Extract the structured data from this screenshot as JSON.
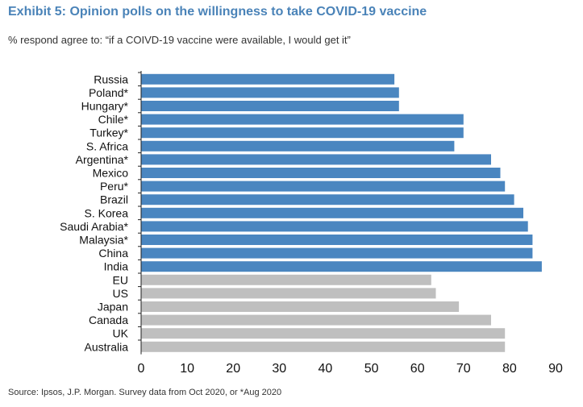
{
  "header": {
    "title": "Exhibit 5: Opinion polls on the willingness to take COVID-19 vaccine",
    "subtitle": "% respond agree to: “if a COIVD-19 vaccine were available, I would get it”"
  },
  "footer": {
    "source": "Source: Ipsos, J.P. Morgan. Survey data from Oct 2020, or *Aug 2020"
  },
  "chart_data": {
    "type": "bar",
    "orientation": "horizontal",
    "title": "Exhibit 5: Opinion polls on the willingness to take COVID-19 vaccine",
    "subtitle": "% respond agree to: “if a COIVD-19 vaccine were available, I would get it”",
    "categories": [
      "Russia",
      "Poland*",
      "Hungary*",
      "Chile*",
      "Turkey*",
      "S. Africa",
      "Argentina*",
      "Mexico",
      "Peru*",
      "Brazil",
      "S. Korea",
      "Saudi Arabia*",
      "Malaysia*",
      "China",
      "India",
      "EU",
      "US",
      "Japan",
      "Canada",
      "UK",
      "Australia"
    ],
    "values": [
      55,
      56,
      56,
      70,
      70,
      68,
      76,
      78,
      79,
      81,
      83,
      84,
      85,
      85,
      87,
      63,
      64,
      69,
      76,
      79,
      79
    ],
    "bar_colors": [
      "#4a86c0",
      "#4a86c0",
      "#4a86c0",
      "#4a86c0",
      "#4a86c0",
      "#4a86c0",
      "#4a86c0",
      "#4a86c0",
      "#4a86c0",
      "#4a86c0",
      "#4a86c0",
      "#4a86c0",
      "#4a86c0",
      "#4a86c0",
      "#4a86c0",
      "#bfbfbf",
      "#bfbfbf",
      "#bfbfbf",
      "#bfbfbf",
      "#bfbfbf",
      "#bfbfbf"
    ],
    "xlim": [
      0,
      90
    ],
    "xticks": [
      0,
      10,
      20,
      30,
      40,
      50,
      60,
      70,
      80,
      90
    ],
    "grid": false,
    "legend": "none"
  }
}
